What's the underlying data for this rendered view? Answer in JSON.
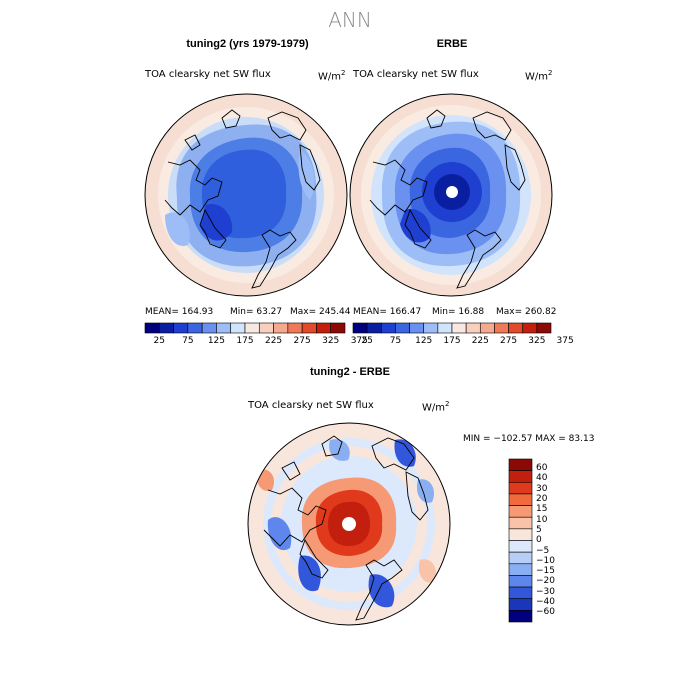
{
  "title": "ANN",
  "panels": [
    {
      "title": "tuning2 (yrs 1979-1979)",
      "variable": "TOA clearsky net SW flux",
      "units_base": "W/m",
      "units_exp": "2",
      "mean_text": "MEAN= 164.93",
      "min_text": "Min=  63.27",
      "max_text": "Max= 245.44"
    },
    {
      "title": "ERBE",
      "variable": "TOA clearsky net SW flux",
      "units_base": "W/m",
      "units_exp": "2",
      "mean_text": "MEAN= 166.47",
      "min_text": "Min=  16.88",
      "max_text": "Max= 260.82"
    },
    {
      "title": "tuning2 - ERBE",
      "variable": "TOA clearsky net SW flux",
      "units_base": "W/m",
      "units_exp": "2",
      "minmax_text": "MIN = −102.57 MAX =  83.13"
    }
  ],
  "colorbar_top": {
    "colors": [
      "#00007f",
      "#0a1fa0",
      "#1e3fd0",
      "#3a66e0",
      "#6a90f0",
      "#9dbdf7",
      "#d2e4fb",
      "#f6e9e2",
      "#f9cfbd",
      "#f5a98f",
      "#ef7a58",
      "#e24a2a",
      "#c21f0e",
      "#8c0a05"
    ],
    "tick_labels": [
      "25",
      "75",
      "125",
      "175",
      "225",
      "275",
      "325",
      "375"
    ]
  },
  "colorbar_diff": {
    "colors": [
      "#8c0a05",
      "#c21f0e",
      "#e0391b",
      "#f06a3e",
      "#f59a75",
      "#f8c3a9",
      "#f8e6dc",
      "#dce8fb",
      "#b6cdf7",
      "#8aaef2",
      "#5f86ec",
      "#3357da",
      "#1a36b9",
      "#00007f"
    ],
    "tick_labels": [
      "60",
      "40",
      "30",
      "20",
      "15",
      "10",
      "5",
      "0",
      "−5",
      "−10",
      "−15",
      "−20",
      "−30",
      "−40",
      "−60"
    ]
  }
}
